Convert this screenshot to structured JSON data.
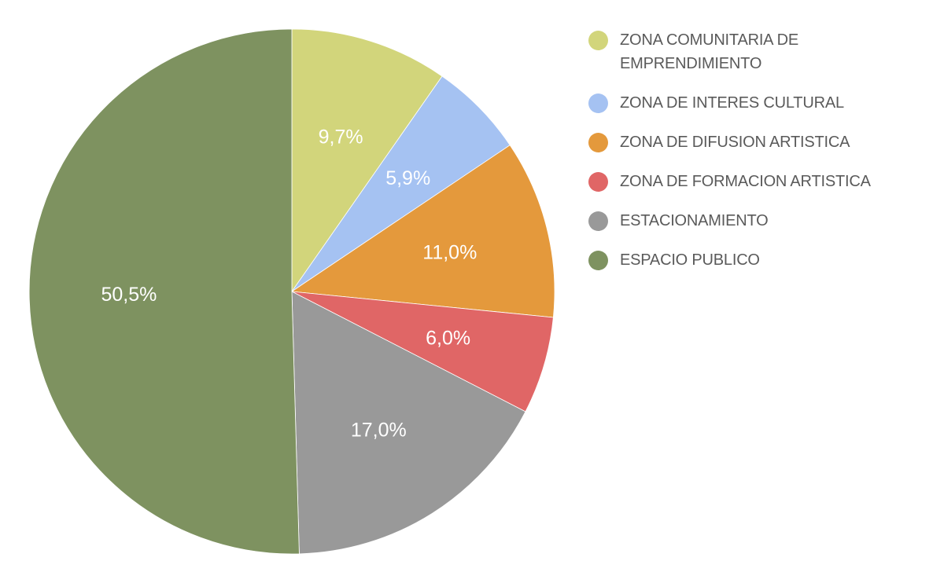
{
  "chart_data": {
    "type": "pie",
    "slices": [
      {
        "label": "ZONA COMUNITARIA DE EMPRENDIMIENTO",
        "value": 9.7,
        "display": "9,7%",
        "color": "#d2d57b"
      },
      {
        "label": "ZONA DE INTERES CULTURAL",
        "value": 5.9,
        "display": "5,9%",
        "color": "#a5c2f2"
      },
      {
        "label": "ZONA DE DIFUSION ARTISTICA",
        "value": 11.0,
        "display": "11,0%",
        "color": "#e4993c"
      },
      {
        "label": "ZONA DE FORMACION ARTISTICA",
        "value": 6.0,
        "display": "6,0%",
        "color": "#e06666"
      },
      {
        "label": "ESTACIONAMIENTO",
        "value": 17.0,
        "display": "17,0%",
        "color": "#999999"
      },
      {
        "label": "ESPACIO PUBLICO",
        "value": 50.5,
        "display": "50,5%",
        "color": "#7e9260"
      }
    ],
    "start_angle": "12 o'clock",
    "direction": "clockwise",
    "legend_position": "right"
  }
}
